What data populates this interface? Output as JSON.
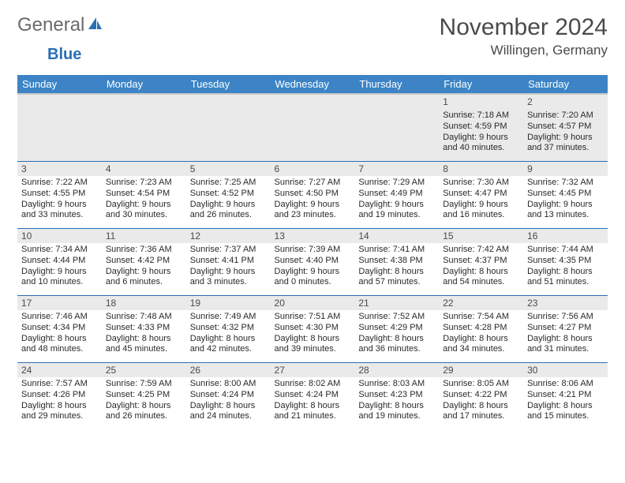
{
  "brand": {
    "general": "General",
    "blue": "Blue"
  },
  "month_title": "November 2024",
  "location": "Willingen, Germany",
  "colors": {
    "header_bg": "#3c84c6",
    "header_text": "#ffffff",
    "row_divider": "#2a6fb4",
    "daynum_bg": "#eaeaea",
    "text": "#2a2a2a",
    "title_text": "#4a4a4a",
    "logo_general": "#6a6a6a",
    "logo_blue": "#2a6fb4"
  },
  "weekdays": [
    "Sunday",
    "Monday",
    "Tuesday",
    "Wednesday",
    "Thursday",
    "Friday",
    "Saturday"
  ],
  "days": [
    {
      "n": "",
      "sr": "",
      "ss": "",
      "dl": ""
    },
    {
      "n": "",
      "sr": "",
      "ss": "",
      "dl": ""
    },
    {
      "n": "",
      "sr": "",
      "ss": "",
      "dl": ""
    },
    {
      "n": "",
      "sr": "",
      "ss": "",
      "dl": ""
    },
    {
      "n": "",
      "sr": "",
      "ss": "",
      "dl": ""
    },
    {
      "n": "1",
      "sr": "Sunrise: 7:18 AM",
      "ss": "Sunset: 4:59 PM",
      "dl": "Daylight: 9 hours and 40 minutes."
    },
    {
      "n": "2",
      "sr": "Sunrise: 7:20 AM",
      "ss": "Sunset: 4:57 PM",
      "dl": "Daylight: 9 hours and 37 minutes."
    },
    {
      "n": "3",
      "sr": "Sunrise: 7:22 AM",
      "ss": "Sunset: 4:55 PM",
      "dl": "Daylight: 9 hours and 33 minutes."
    },
    {
      "n": "4",
      "sr": "Sunrise: 7:23 AM",
      "ss": "Sunset: 4:54 PM",
      "dl": "Daylight: 9 hours and 30 minutes."
    },
    {
      "n": "5",
      "sr": "Sunrise: 7:25 AM",
      "ss": "Sunset: 4:52 PM",
      "dl": "Daylight: 9 hours and 26 minutes."
    },
    {
      "n": "6",
      "sr": "Sunrise: 7:27 AM",
      "ss": "Sunset: 4:50 PM",
      "dl": "Daylight: 9 hours and 23 minutes."
    },
    {
      "n": "7",
      "sr": "Sunrise: 7:29 AM",
      "ss": "Sunset: 4:49 PM",
      "dl": "Daylight: 9 hours and 19 minutes."
    },
    {
      "n": "8",
      "sr": "Sunrise: 7:30 AM",
      "ss": "Sunset: 4:47 PM",
      "dl": "Daylight: 9 hours and 16 minutes."
    },
    {
      "n": "9",
      "sr": "Sunrise: 7:32 AM",
      "ss": "Sunset: 4:45 PM",
      "dl": "Daylight: 9 hours and 13 minutes."
    },
    {
      "n": "10",
      "sr": "Sunrise: 7:34 AM",
      "ss": "Sunset: 4:44 PM",
      "dl": "Daylight: 9 hours and 10 minutes."
    },
    {
      "n": "11",
      "sr": "Sunrise: 7:36 AM",
      "ss": "Sunset: 4:42 PM",
      "dl": "Daylight: 9 hours and 6 minutes."
    },
    {
      "n": "12",
      "sr": "Sunrise: 7:37 AM",
      "ss": "Sunset: 4:41 PM",
      "dl": "Daylight: 9 hours and 3 minutes."
    },
    {
      "n": "13",
      "sr": "Sunrise: 7:39 AM",
      "ss": "Sunset: 4:40 PM",
      "dl": "Daylight: 9 hours and 0 minutes."
    },
    {
      "n": "14",
      "sr": "Sunrise: 7:41 AM",
      "ss": "Sunset: 4:38 PM",
      "dl": "Daylight: 8 hours and 57 minutes."
    },
    {
      "n": "15",
      "sr": "Sunrise: 7:42 AM",
      "ss": "Sunset: 4:37 PM",
      "dl": "Daylight: 8 hours and 54 minutes."
    },
    {
      "n": "16",
      "sr": "Sunrise: 7:44 AM",
      "ss": "Sunset: 4:35 PM",
      "dl": "Daylight: 8 hours and 51 minutes."
    },
    {
      "n": "17",
      "sr": "Sunrise: 7:46 AM",
      "ss": "Sunset: 4:34 PM",
      "dl": "Daylight: 8 hours and 48 minutes."
    },
    {
      "n": "18",
      "sr": "Sunrise: 7:48 AM",
      "ss": "Sunset: 4:33 PM",
      "dl": "Daylight: 8 hours and 45 minutes."
    },
    {
      "n": "19",
      "sr": "Sunrise: 7:49 AM",
      "ss": "Sunset: 4:32 PM",
      "dl": "Daylight: 8 hours and 42 minutes."
    },
    {
      "n": "20",
      "sr": "Sunrise: 7:51 AM",
      "ss": "Sunset: 4:30 PM",
      "dl": "Daylight: 8 hours and 39 minutes."
    },
    {
      "n": "21",
      "sr": "Sunrise: 7:52 AM",
      "ss": "Sunset: 4:29 PM",
      "dl": "Daylight: 8 hours and 36 minutes."
    },
    {
      "n": "22",
      "sr": "Sunrise: 7:54 AM",
      "ss": "Sunset: 4:28 PM",
      "dl": "Daylight: 8 hours and 34 minutes."
    },
    {
      "n": "23",
      "sr": "Sunrise: 7:56 AM",
      "ss": "Sunset: 4:27 PM",
      "dl": "Daylight: 8 hours and 31 minutes."
    },
    {
      "n": "24",
      "sr": "Sunrise: 7:57 AM",
      "ss": "Sunset: 4:26 PM",
      "dl": "Daylight: 8 hours and 29 minutes."
    },
    {
      "n": "25",
      "sr": "Sunrise: 7:59 AM",
      "ss": "Sunset: 4:25 PM",
      "dl": "Daylight: 8 hours and 26 minutes."
    },
    {
      "n": "26",
      "sr": "Sunrise: 8:00 AM",
      "ss": "Sunset: 4:24 PM",
      "dl": "Daylight: 8 hours and 24 minutes."
    },
    {
      "n": "27",
      "sr": "Sunrise: 8:02 AM",
      "ss": "Sunset: 4:24 PM",
      "dl": "Daylight: 8 hours and 21 minutes."
    },
    {
      "n": "28",
      "sr": "Sunrise: 8:03 AM",
      "ss": "Sunset: 4:23 PM",
      "dl": "Daylight: 8 hours and 19 minutes."
    },
    {
      "n": "29",
      "sr": "Sunrise: 8:05 AM",
      "ss": "Sunset: 4:22 PM",
      "dl": "Daylight: 8 hours and 17 minutes."
    },
    {
      "n": "30",
      "sr": "Sunrise: 8:06 AM",
      "ss": "Sunset: 4:21 PM",
      "dl": "Daylight: 8 hours and 15 minutes."
    }
  ]
}
